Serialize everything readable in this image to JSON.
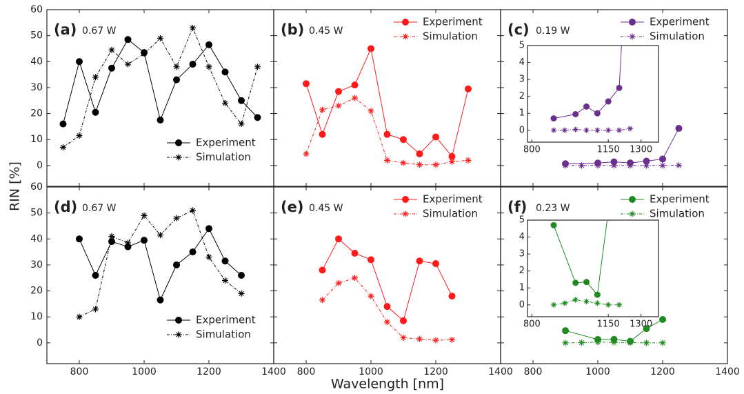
{
  "axis_labels": {
    "y": "RIN [%]",
    "x": "Wavelength [nm]"
  },
  "chart_data": [
    {
      "type": "line",
      "label": "(a)",
      "power": "0.67 W",
      "legend": "lower right",
      "xlim": [
        700,
        1400
      ],
      "xticks": [
        800,
        1000,
        1200,
        1400
      ],
      "ylim": [
        -8,
        60
      ],
      "yticks": [
        0,
        10,
        20,
        30,
        40,
        50,
        60
      ],
      "series": [
        {
          "name": "Experiment",
          "color": "#000000",
          "x": [
            750,
            800,
            850,
            900,
            950,
            1000,
            1050,
            1100,
            1150,
            1200,
            1250,
            1300,
            1350
          ],
          "values": [
            16,
            40,
            20.5,
            37.5,
            48.5,
            43.5,
            17.5,
            33,
            39,
            46.5,
            36,
            25,
            18.5
          ]
        },
        {
          "name": "Simulation",
          "color": "#000000",
          "x": [
            750,
            800,
            850,
            900,
            950,
            1000,
            1050,
            1100,
            1150,
            1200,
            1250,
            1300,
            1350
          ],
          "values": [
            7,
            11.5,
            34,
            44.5,
            39,
            43,
            49,
            38,
            53,
            38,
            24,
            16,
            38
          ]
        }
      ]
    },
    {
      "type": "line",
      "label": "(b)",
      "power": "0.45 W",
      "legend": "upper right",
      "xlim": [
        700,
        1400
      ],
      "xticks": [
        800,
        1000,
        1200,
        1400
      ],
      "ylim": [
        -8,
        60
      ],
      "yticks": [
        0,
        10,
        20,
        30,
        40,
        50,
        60
      ],
      "series": [
        {
          "name": "Experiment",
          "color": "#ff1a1a",
          "x": [
            800,
            850,
            900,
            950,
            1000,
            1050,
            1100,
            1150,
            1200,
            1250,
            1300
          ],
          "values": [
            31.5,
            12,
            28.5,
            31,
            45,
            12,
            10,
            4.5,
            11,
            3.5,
            29.5
          ]
        },
        {
          "name": "Simulation",
          "color": "#ff1a1a",
          "x": [
            800,
            850,
            900,
            950,
            1000,
            1050,
            1100,
            1150,
            1200,
            1250,
            1300
          ],
          "values": [
            4.5,
            21.5,
            23,
            26,
            21,
            2,
            1,
            0.3,
            0.3,
            1.5,
            2
          ]
        }
      ]
    },
    {
      "type": "line",
      "label": "(c)",
      "power": "0.19 W",
      "legend": "upper right",
      "xlim": [
        700,
        1400
      ],
      "xticks": [
        800,
        1000,
        1200,
        1400
      ],
      "ylim": [
        -8,
        60
      ],
      "yticks": [
        0,
        10,
        20,
        30,
        40,
        50,
        60
      ],
      "inset": {
        "xlim": [
          780,
          1380
        ],
        "xticks": [
          800,
          1150,
          1300
        ],
        "ylim": [
          -0.7,
          5
        ],
        "yticks": [
          0,
          1,
          2,
          3,
          4,
          5
        ]
      },
      "series": [
        {
          "name": "Experiment",
          "color": "#6b2f8f",
          "x": [
            900,
            1000,
            1050,
            1100,
            1150,
            1200,
            1250
          ],
          "values": [
            0.7,
            0.95,
            1.4,
            1.0,
            1.7,
            2.5,
            14.3
          ]
        },
        {
          "name": "Simulation",
          "color": "#6b2f8f",
          "x": [
            900,
            950,
            1000,
            1050,
            1100,
            1150,
            1200,
            1250
          ],
          "values": [
            0,
            0,
            0.05,
            0,
            0,
            0,
            0,
            0.1
          ]
        }
      ]
    },
    {
      "type": "line",
      "label": "(d)",
      "power": "0.67 W",
      "legend": "lower right",
      "xlim": [
        700,
        1400
      ],
      "xticks": [
        800,
        1000,
        1200,
        1400
      ],
      "ylim": [
        -8,
        60
      ],
      "yticks": [
        0,
        10,
        20,
        30,
        40,
        50,
        60
      ],
      "series": [
        {
          "name": "Experiment",
          "color": "#000000",
          "x": [
            800,
            850,
            900,
            950,
            1000,
            1050,
            1100,
            1150,
            1200,
            1250,
            1300
          ],
          "values": [
            40,
            26,
            39,
            37,
            39.5,
            16.5,
            30,
            35,
            44,
            31.5,
            26
          ]
        },
        {
          "name": "Simulation",
          "color": "#000000",
          "x": [
            800,
            850,
            900,
            950,
            1000,
            1050,
            1100,
            1150,
            1200,
            1250,
            1300
          ],
          "values": [
            10,
            13,
            41,
            38.5,
            49,
            41.5,
            48,
            51,
            33,
            24,
            19
          ]
        }
      ]
    },
    {
      "type": "line",
      "label": "(e)",
      "power": "0.45 W",
      "legend": "upper right",
      "xlim": [
        700,
        1400
      ],
      "xticks": [
        800,
        1000,
        1200,
        1400
      ],
      "ylim": [
        -8,
        60
      ],
      "yticks": [
        0,
        10,
        20,
        30,
        40,
        50,
        60
      ],
      "series": [
        {
          "name": "Experiment",
          "color": "#ff1a1a",
          "x": [
            850,
            900,
            950,
            1000,
            1050,
            1100,
            1150,
            1200,
            1250
          ],
          "values": [
            28,
            40,
            34.5,
            32,
            14,
            8.5,
            31.5,
            30.5,
            18
          ]
        },
        {
          "name": "Simulation",
          "color": "#ff1a1a",
          "x": [
            850,
            900,
            950,
            1000,
            1050,
            1100,
            1150,
            1200,
            1250
          ],
          "values": [
            16.5,
            23,
            25,
            18,
            8,
            2,
            1.5,
            1,
            1.2
          ]
        }
      ]
    },
    {
      "type": "line",
      "label": "(f)",
      "power": "0.23 W",
      "legend": "upper right",
      "xlim": [
        700,
        1400
      ],
      "xticks": [
        800,
        1000,
        1200,
        1400
      ],
      "ylim": [
        -8,
        60
      ],
      "yticks": [
        0,
        10,
        20,
        30,
        40,
        50,
        60
      ],
      "inset": {
        "xlim": [
          780,
          1380
        ],
        "xticks": [
          800,
          1150,
          1300
        ],
        "ylim": [
          -0.7,
          5
        ],
        "yticks": [
          0,
          1,
          2,
          3,
          4,
          5
        ]
      },
      "series": [
        {
          "name": "Experiment",
          "color": "#1f8a1f",
          "x": [
            900,
            1000,
            1050,
            1100,
            1150,
            1200
          ],
          "values": [
            4.7,
            1.3,
            1.35,
            0.6,
            5.5,
            9
          ]
        },
        {
          "name": "Simulation",
          "color": "#1f8a1f",
          "x": [
            900,
            950,
            1000,
            1050,
            1100,
            1150,
            1200
          ],
          "values": [
            0,
            0.1,
            0.3,
            0.2,
            0.1,
            0,
            0
          ]
        }
      ]
    }
  ]
}
